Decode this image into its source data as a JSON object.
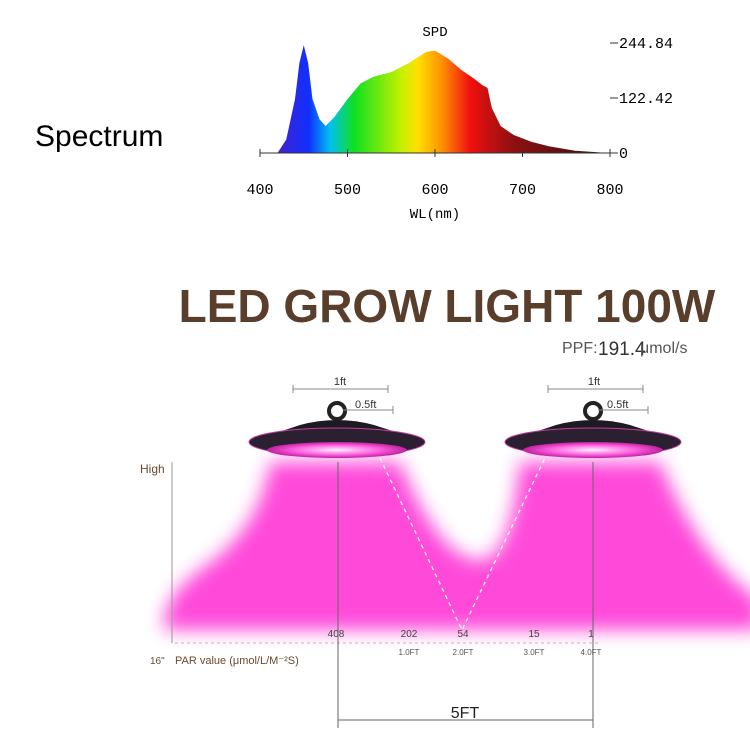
{
  "spectrum_label": "Spectrum",
  "chart_data": {
    "type": "area",
    "title": "SPD",
    "x_label": "WL(nm)",
    "x": [
      420,
      430,
      440,
      445,
      450,
      455,
      460,
      468,
      475,
      485,
      500,
      515,
      530,
      550,
      570,
      590,
      600,
      615,
      630,
      645,
      655,
      660,
      665,
      675,
      690,
      710,
      730,
      760,
      790,
      800
    ],
    "values": [
      0,
      30,
      120,
      200,
      240,
      200,
      120,
      75,
      60,
      80,
      120,
      155,
      170,
      180,
      200,
      225,
      228,
      210,
      185,
      165,
      150,
      145,
      100,
      60,
      40,
      25,
      15,
      5,
      1,
      0
    ],
    "xlim": [
      400,
      800
    ],
    "xticks": [
      400,
      500,
      600,
      700,
      800
    ],
    "ylim": [
      0,
      244.84
    ],
    "yticks": [
      0,
      122.42,
      244.84
    ]
  },
  "diagram": {
    "title": "LED GROW LIGHT 100W",
    "ppf_label": "PPF:",
    "ppf_value": "191.4",
    "ppf_unit": "μmol/s",
    "lamps": [
      {
        "width_label": "1ft",
        "half_label": "0.5ft"
      },
      {
        "width_label": "1ft",
        "half_label": "0.5ft"
      }
    ],
    "height_label": "High",
    "height_value": "16\"",
    "par_label": "PAR value (μmol/L/M⁻²S)",
    "par_values": [
      408,
      202,
      54,
      15,
      1
    ],
    "distance_labels": [
      "1.0FT",
      "2.0FT",
      "3.0FT",
      "4.0FT"
    ],
    "span_label": "5FT"
  }
}
